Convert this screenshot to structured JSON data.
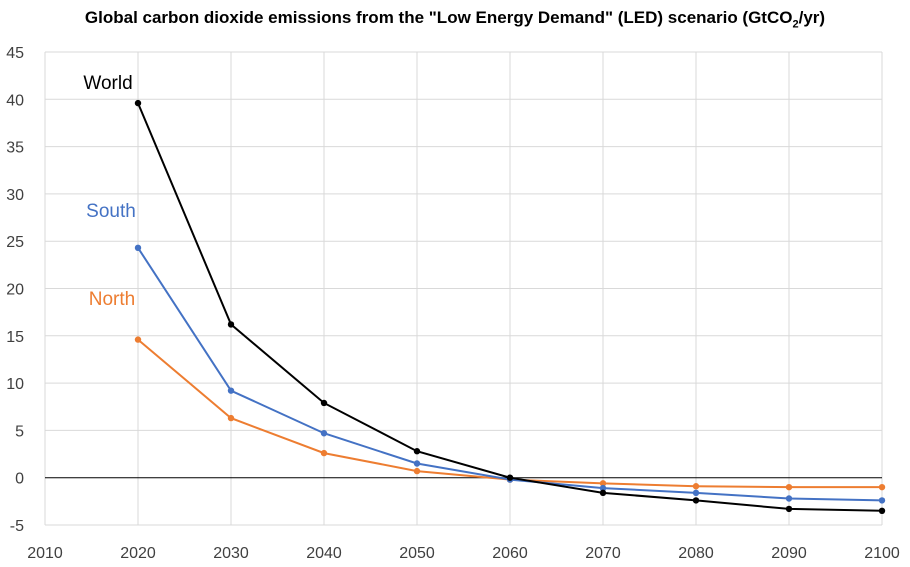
{
  "chart_data": {
    "type": "line",
    "title_prefix": "Global carbon dioxide emissions from the \"Low Energy Demand\" (LED) scenario (GtCO",
    "title_sub": "2",
    "title_suffix": "/yr)",
    "xlim": [
      2010,
      2100
    ],
    "ylim": [
      -5,
      45
    ],
    "x_ticks": [
      2010,
      2020,
      2030,
      2040,
      2050,
      2060,
      2070,
      2080,
      2090,
      2100
    ],
    "y_ticks": [
      -5,
      0,
      5,
      10,
      15,
      20,
      25,
      30,
      35,
      40,
      45
    ],
    "grid": true,
    "x": [
      2020,
      2030,
      2040,
      2050,
      2060,
      2070,
      2080,
      2090,
      2100
    ],
    "series": [
      {
        "name": "World",
        "color": "#000000",
        "values": [
          39.6,
          16.2,
          7.9,
          2.8,
          0.0,
          -1.6,
          -2.4,
          -3.3,
          -3.5
        ]
      },
      {
        "name": "South",
        "color": "#4472C4",
        "values": [
          24.3,
          9.2,
          4.7,
          1.5,
          -0.2,
          -1.1,
          -1.6,
          -2.2,
          -2.4
        ]
      },
      {
        "name": "North",
        "color": "#ED7D31",
        "values": [
          14.6,
          6.3,
          2.6,
          0.7,
          -0.2,
          -0.6,
          -0.9,
          -1.0,
          -1.0
        ]
      }
    ]
  }
}
